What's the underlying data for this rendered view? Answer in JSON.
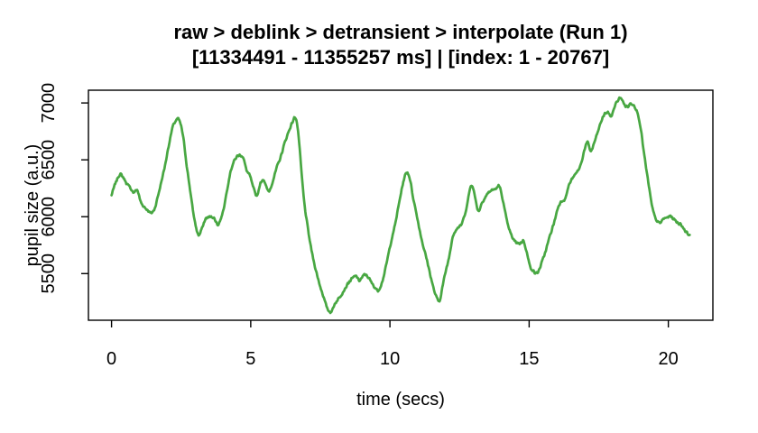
{
  "window": {
    "background": "#ffffff"
  },
  "chart_data": {
    "type": "line",
    "title": "raw > deblink > detransient > interpolate (Run 1)",
    "subtitle": "[11334491 - 11355257 ms] | [index: 1 - 20767]",
    "xlabel": "time (secs)",
    "ylabel": "pupil size (a.u.)",
    "x_ticks": [
      0,
      5,
      10,
      15,
      20
    ],
    "y_ticks": [
      5500,
      6000,
      6500,
      7000
    ],
    "xlim": [
      -0.83,
      21.6
    ],
    "ylim": [
      5090,
      7112
    ],
    "grid": false,
    "legend": "none",
    "line_color": "#48a742",
    "axis_color": "#000000",
    "time_range_ms": [
      11334491,
      11355257
    ],
    "index_range": [
      1,
      20767
    ],
    "series": [
      {
        "name": "pupil_size_au",
        "points": [
          [
            0,
            6190
          ],
          [
            0.15,
            6300
          ],
          [
            0.3,
            6370
          ],
          [
            0.42,
            6345
          ],
          [
            0.55,
            6290
          ],
          [
            0.7,
            6245
          ],
          [
            0.8,
            6212
          ],
          [
            0.92,
            6235
          ],
          [
            1.05,
            6130
          ],
          [
            1.2,
            6080
          ],
          [
            1.3,
            6058
          ],
          [
            1.42,
            6032
          ],
          [
            1.55,
            6075
          ],
          [
            1.68,
            6195
          ],
          [
            1.8,
            6320
          ],
          [
            1.92,
            6450
          ],
          [
            2.05,
            6620
          ],
          [
            2.2,
            6790
          ],
          [
            2.33,
            6850
          ],
          [
            2.4,
            6858
          ],
          [
            2.5,
            6795
          ],
          [
            2.6,
            6655
          ],
          [
            2.7,
            6450
          ],
          [
            2.82,
            6240
          ],
          [
            2.92,
            6060
          ],
          [
            3,
            5950
          ],
          [
            3.08,
            5862
          ],
          [
            3.15,
            5840
          ],
          [
            3.25,
            5900
          ],
          [
            3.38,
            5980
          ],
          [
            3.5,
            5995
          ],
          [
            3.62,
            6000
          ],
          [
            3.72,
            5972
          ],
          [
            3.82,
            5932
          ],
          [
            3.95,
            6000
          ],
          [
            4.05,
            6100
          ],
          [
            4.18,
            6280
          ],
          [
            4.3,
            6420
          ],
          [
            4.45,
            6510
          ],
          [
            4.58,
            6540
          ],
          [
            4.72,
            6522
          ],
          [
            4.85,
            6410
          ],
          [
            4.98,
            6352
          ],
          [
            5.1,
            6248
          ],
          [
            5.22,
            6188
          ],
          [
            5.35,
            6292
          ],
          [
            5.46,
            6328
          ],
          [
            5.56,
            6258
          ],
          [
            5.66,
            6226
          ],
          [
            5.8,
            6320
          ],
          [
            5.94,
            6435
          ],
          [
            6.08,
            6530
          ],
          [
            6.22,
            6650
          ],
          [
            6.35,
            6740
          ],
          [
            6.5,
            6832
          ],
          [
            6.62,
            6868
          ],
          [
            6.72,
            6700
          ],
          [
            6.82,
            6400
          ],
          [
            6.92,
            6130
          ],
          [
            7.02,
            5950
          ],
          [
            7.12,
            5790
          ],
          [
            7.22,
            5660
          ],
          [
            7.35,
            5520
          ],
          [
            7.48,
            5400
          ],
          [
            7.6,
            5308
          ],
          [
            7.72,
            5212
          ],
          [
            7.82,
            5168
          ],
          [
            7.92,
            5175
          ],
          [
            8.02,
            5235
          ],
          [
            8.12,
            5268
          ],
          [
            8.25,
            5315
          ],
          [
            8.38,
            5365
          ],
          [
            8.5,
            5415
          ],
          [
            8.62,
            5450
          ],
          [
            8.72,
            5472
          ],
          [
            8.8,
            5478
          ],
          [
            8.88,
            5440
          ],
          [
            9,
            5465
          ],
          [
            9.1,
            5492
          ],
          [
            9.22,
            5468
          ],
          [
            9.35,
            5415
          ],
          [
            9.48,
            5372
          ],
          [
            9.57,
            5352
          ],
          [
            9.68,
            5400
          ],
          [
            9.8,
            5500
          ],
          [
            9.92,
            5640
          ],
          [
            10.04,
            5780
          ],
          [
            10.16,
            5902
          ],
          [
            10.3,
            6082
          ],
          [
            10.44,
            6262
          ],
          [
            10.56,
            6372
          ],
          [
            10.63,
            6388
          ],
          [
            10.72,
            6328
          ],
          [
            10.84,
            6160
          ],
          [
            10.95,
            6030
          ],
          [
            11.08,
            5868
          ],
          [
            11.2,
            5738
          ],
          [
            11.33,
            5618
          ],
          [
            11.46,
            5478
          ],
          [
            11.58,
            5358
          ],
          [
            11.68,
            5288
          ],
          [
            11.78,
            5262
          ],
          [
            11.9,
            5400
          ],
          [
            12,
            5518
          ],
          [
            12.12,
            5640
          ],
          [
            12.25,
            5820
          ],
          [
            12.35,
            5875
          ],
          [
            12.45,
            5905
          ],
          [
            12.55,
            5925
          ],
          [
            12.65,
            5988
          ],
          [
            12.78,
            6115
          ],
          [
            12.88,
            6250
          ],
          [
            12.97,
            6272
          ],
          [
            13.08,
            6140
          ],
          [
            13.18,
            6052
          ],
          [
            13.3,
            6120
          ],
          [
            13.42,
            6170
          ],
          [
            13.55,
            6215
          ],
          [
            13.68,
            6235
          ],
          [
            13.8,
            6245
          ],
          [
            13.92,
            6268
          ],
          [
            14.02,
            6190
          ],
          [
            14.12,
            6060
          ],
          [
            14.22,
            5945
          ],
          [
            14.32,
            5862
          ],
          [
            14.45,
            5795
          ],
          [
            14.58,
            5772
          ],
          [
            14.7,
            5768
          ],
          [
            14.8,
            5788
          ],
          [
            14.92,
            5680
          ],
          [
            15.02,
            5575
          ],
          [
            15.12,
            5532
          ],
          [
            15.22,
            5505
          ],
          [
            15.32,
            5515
          ],
          [
            15.45,
            5595
          ],
          [
            15.6,
            5705
          ],
          [
            15.75,
            5835
          ],
          [
            15.9,
            5952
          ],
          [
            16.05,
            6090
          ],
          [
            16.18,
            6140
          ],
          [
            16.3,
            6162
          ],
          [
            16.42,
            6270
          ],
          [
            16.55,
            6335
          ],
          [
            16.7,
            6385
          ],
          [
            16.85,
            6455
          ],
          [
            17,
            6600
          ],
          [
            17.1,
            6650
          ],
          [
            17.22,
            6578
          ],
          [
            17.35,
            6660
          ],
          [
            17.48,
            6755
          ],
          [
            17.6,
            6845
          ],
          [
            17.72,
            6905
          ],
          [
            17.83,
            6915
          ],
          [
            17.95,
            6885
          ],
          [
            18.08,
            6975
          ],
          [
            18.2,
            7025
          ],
          [
            18.3,
            7045
          ],
          [
            18.42,
            6985
          ],
          [
            18.55,
            6968
          ],
          [
            18.65,
            6995
          ],
          [
            18.78,
            6975
          ],
          [
            18.9,
            6905
          ],
          [
            19,
            6790
          ],
          [
            19.1,
            6605
          ],
          [
            19.2,
            6430
          ],
          [
            19.3,
            6270
          ],
          [
            19.4,
            6110
          ],
          [
            19.5,
            6012
          ],
          [
            19.6,
            5960
          ],
          [
            19.7,
            5945
          ],
          [
            19.82,
            5980
          ],
          [
            19.95,
            5992
          ],
          [
            20.08,
            6005
          ],
          [
            20.2,
            5978
          ],
          [
            20.32,
            5952
          ],
          [
            20.45,
            5930
          ],
          [
            20.55,
            5898
          ],
          [
            20.65,
            5862
          ],
          [
            20.72,
            5848
          ],
          [
            20.767,
            5840
          ]
        ]
      }
    ]
  }
}
